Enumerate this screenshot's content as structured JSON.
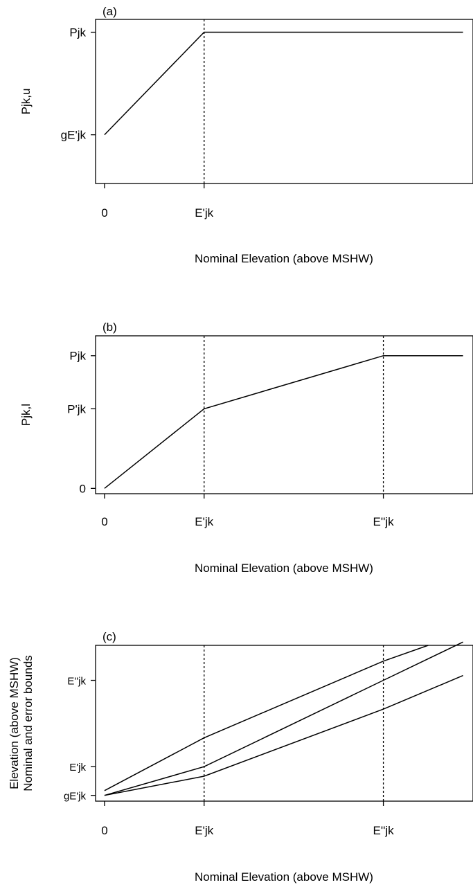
{
  "chart_data": [
    {
      "panel_label": "(a)",
      "type": "line",
      "xlabel": "Nominal Elevation (above MSHW)",
      "ylabel": "Pjk,u",
      "x_ticks": [
        {
          "label": "0",
          "value": 0
        },
        {
          "label": "E'jk",
          "value": 1
        }
      ],
      "y_ticks": [
        {
          "label": "gE'jk",
          "value": 0.2
        },
        {
          "label": "Pjk",
          "value": 1
        }
      ],
      "xlim": [
        -0.09,
        3.7
      ],
      "ylim": [
        -0.18,
        1.1
      ],
      "reference_lines_x": [
        1
      ],
      "series": [
        {
          "x": [
            0,
            1,
            3.6
          ],
          "y": [
            0.2,
            1,
            1
          ]
        }
      ]
    },
    {
      "panel_label": "(b)",
      "type": "line",
      "xlabel": "Nominal Elevation (above MSHW)",
      "ylabel": "Pjk,l",
      "x_ticks": [
        {
          "label": "0",
          "value": 0
        },
        {
          "label": "E'jk",
          "value": 1
        },
        {
          "label": "E''jk",
          "value": 2.8
        }
      ],
      "y_ticks": [
        {
          "label": "0",
          "value": 0
        },
        {
          "label": "P'jk",
          "value": 0.6
        },
        {
          "label": "Pjk",
          "value": 1
        }
      ],
      "xlim": [
        -0.09,
        3.7
      ],
      "ylim": [
        -0.04,
        1.15
      ],
      "reference_lines_x": [
        1,
        2.8
      ],
      "series": [
        {
          "x": [
            0,
            1,
            2.8,
            3.6
          ],
          "y": [
            0,
            0.6,
            1,
            1
          ]
        }
      ]
    },
    {
      "panel_label": "(c)",
      "type": "line",
      "xlabel": "Nominal Elevation (above MSHW)",
      "ylabel": "Elevation (above MSHW)\nNominal and error bounds",
      "x_ticks": [
        {
          "label": "0",
          "value": 0
        },
        {
          "label": "E'jk",
          "value": 1
        },
        {
          "label": "E''jk",
          "value": 2.8
        }
      ],
      "y_ticks": [
        {
          "label": "gE'jk",
          "value": 0.4
        },
        {
          "label": "E'jk",
          "value": 1
        },
        {
          "label": "E''jk",
          "value": 2.8
        }
      ],
      "xlim": [
        -0.09,
        3.7
      ],
      "ylim": [
        0.28,
        3.53
      ],
      "reference_lines_x": [
        1,
        2.8
      ],
      "series": [
        {
          "x": [
            0,
            1,
            2.8,
            3.6
          ],
          "y": [
            0.4,
            1,
            2.8,
            3.6
          ]
        },
        {
          "x": [
            0,
            1,
            2.8,
            3.25
          ],
          "y": [
            0.5,
            1.6,
            3.2,
            3.53
          ]
        },
        {
          "x": [
            0,
            1,
            2.8,
            3.6
          ],
          "y": [
            0.4,
            0.8,
            2.2,
            2.9
          ]
        }
      ]
    }
  ]
}
